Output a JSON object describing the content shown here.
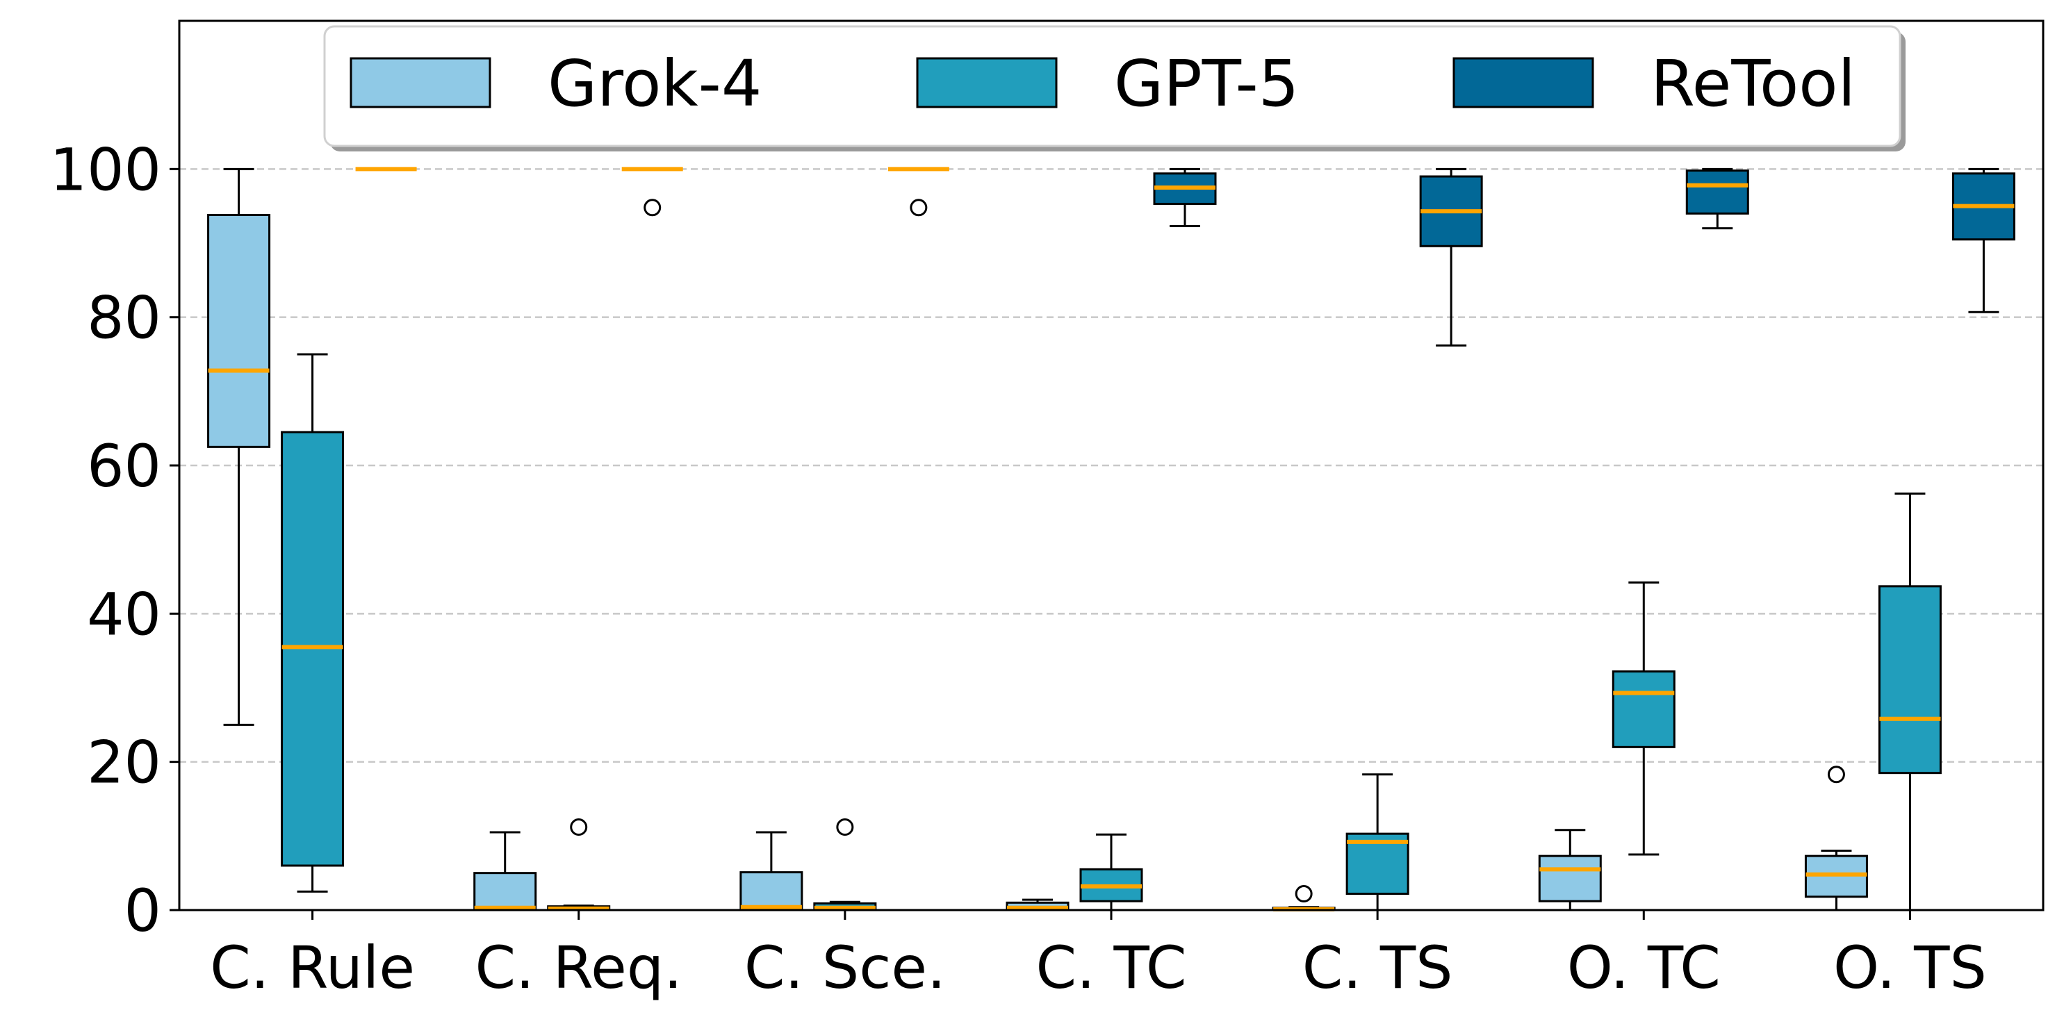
{
  "chart_data": {
    "type": "boxplot",
    "categories": [
      "C. Rule",
      "C. Req.",
      "C. Sce.",
      "C. TC",
      "C. TS",
      "O. TC",
      "O. TS"
    ],
    "ylim": [
      0,
      120
    ],
    "yticks": [
      0,
      20,
      40,
      60,
      80,
      100
    ],
    "ytick_labels": [
      "0",
      "20",
      "40",
      "60",
      "80",
      "100"
    ],
    "grid": "y",
    "legend_position": "top-center",
    "median_color": "#FFA500",
    "series": [
      {
        "name": "Grok-4",
        "color": "#8FC9E6",
        "boxes": [
          {
            "whislo": 25,
            "q1": 62.5,
            "med": 72.8,
            "q3": 93.8,
            "whishi": 100,
            "fliers": []
          },
          {
            "whislo": 0,
            "q1": 0,
            "med": 0.3,
            "q3": 5,
            "whishi": 10.5,
            "fliers": []
          },
          {
            "whislo": 0,
            "q1": 0,
            "med": 0.4,
            "q3": 5.1,
            "whishi": 10.5,
            "fliers": []
          },
          {
            "whislo": 0,
            "q1": 0,
            "med": 0.3,
            "q3": 1.0,
            "whishi": 1.4,
            "fliers": []
          },
          {
            "whislo": 0,
            "q1": 0,
            "med": 0.1,
            "q3": 0.3,
            "whishi": 0.4,
            "fliers": [
              2.2
            ]
          },
          {
            "whislo": 0,
            "q1": 1.2,
            "med": 5.5,
            "q3": 7.3,
            "whishi": 10.8,
            "fliers": []
          },
          {
            "whislo": 0,
            "q1": 1.8,
            "med": 4.8,
            "q3": 7.3,
            "whishi": 8.0,
            "fliers": [
              18.3
            ]
          }
        ]
      },
      {
        "name": "GPT-5",
        "color": "#219EBC",
        "boxes": [
          {
            "whislo": 2.5,
            "q1": 6,
            "med": 35.5,
            "q3": 64.5,
            "whishi": 75,
            "fliers": []
          },
          {
            "whislo": 0,
            "q1": 0,
            "med": 0.2,
            "q3": 0.5,
            "whishi": 0.6,
            "fliers": [
              11.2
            ]
          },
          {
            "whislo": 0,
            "q1": 0,
            "med": 0.3,
            "q3": 0.9,
            "whishi": 1.1,
            "fliers": [
              11.2
            ]
          },
          {
            "whislo": 0,
            "q1": 1.2,
            "med": 3.2,
            "q3": 5.5,
            "whishi": 10.2,
            "fliers": []
          },
          {
            "whislo": 0,
            "q1": 2.2,
            "med": 9.2,
            "q3": 10.3,
            "whishi": 18.3,
            "fliers": []
          },
          {
            "whislo": 7.5,
            "q1": 22,
            "med": 29.3,
            "q3": 32.2,
            "whishi": 44.2,
            "fliers": []
          },
          {
            "whislo": 0,
            "q1": 18.5,
            "med": 25.8,
            "q3": 43.7,
            "whishi": 56.2,
            "fliers": []
          }
        ]
      },
      {
        "name": "ReTool",
        "color": "#026897",
        "boxes": [
          {
            "whislo": 100,
            "q1": 100,
            "med": 100,
            "q3": 100,
            "whishi": 100,
            "fliers": []
          },
          {
            "whislo": 100,
            "q1": 100,
            "med": 100,
            "q3": 100,
            "whishi": 100,
            "fliers": [
              94.8
            ]
          },
          {
            "whislo": 100,
            "q1": 100,
            "med": 100,
            "q3": 100,
            "whishi": 100,
            "fliers": [
              94.8
            ]
          },
          {
            "whislo": 92.3,
            "q1": 95.3,
            "med": 97.5,
            "q3": 99.4,
            "whishi": 100,
            "fliers": []
          },
          {
            "whislo": 76.2,
            "q1": 89.6,
            "med": 94.3,
            "q3": 99.0,
            "whishi": 100,
            "fliers": []
          },
          {
            "whislo": 92.0,
            "q1": 94.0,
            "med": 97.8,
            "q3": 99.8,
            "whishi": 100,
            "fliers": []
          },
          {
            "whislo": 80.7,
            "q1": 90.5,
            "med": 95.0,
            "q3": 99.4,
            "whishi": 100,
            "fliers": []
          }
        ]
      }
    ]
  }
}
